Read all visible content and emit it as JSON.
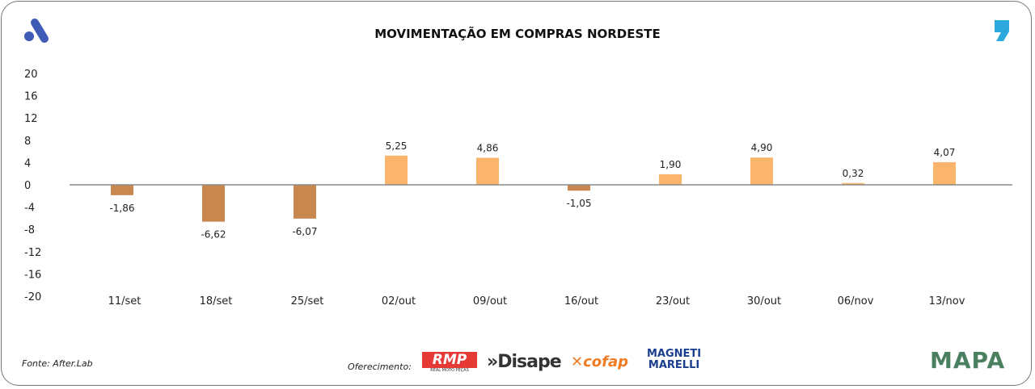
{
  "chart_data": {
    "type": "bar",
    "title": "MOVIMENTAÇÃO EM COMPRAS NORDESTE",
    "categories": [
      "11/set",
      "18/set",
      "25/set",
      "02/out",
      "09/out",
      "16/out",
      "23/out",
      "30/out",
      "06/nov",
      "13/nov"
    ],
    "values": [
      -1.86,
      -6.62,
      -6.07,
      5.25,
      4.86,
      -1.05,
      1.9,
      4.9,
      0.32,
      4.07
    ],
    "data_labels": [
      "-1,86",
      "-6,62",
      "-6,07",
      "5,25",
      "4,86",
      "-1,05",
      "1,90",
      "4,90",
      "0,32",
      "4,07"
    ],
    "ylim": [
      -20,
      20
    ],
    "yticks": [
      20,
      16,
      12,
      8,
      4,
      0,
      -4,
      -8,
      -12,
      -16,
      -20
    ],
    "xlabel": "",
    "ylabel": "",
    "grid": false,
    "colors": {
      "positive": "#FBB46B",
      "negative": "#C8874F",
      "axis": "#888888"
    }
  },
  "footer": {
    "source": "Fonte: After.Lab",
    "offer_label": "Oferecimento:",
    "sponsors": [
      "RMP Real Moto Peças",
      "Disape",
      "cofap",
      "Magneti Marelli"
    ]
  },
  "logos": {
    "left": "A",
    "right": ",",
    "bottom_right": "MAPA"
  }
}
